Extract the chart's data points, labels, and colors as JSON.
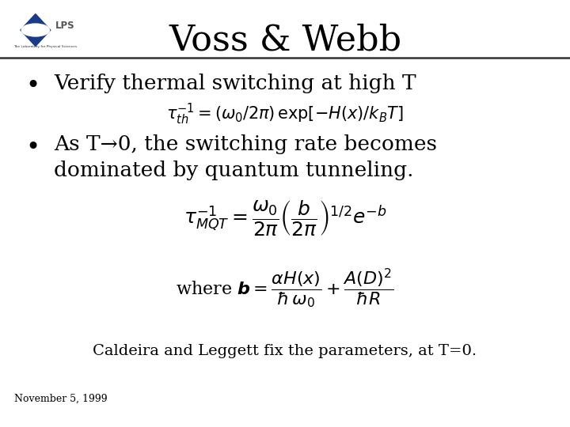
{
  "title": "Voss & Webb",
  "bg_color": "#ffffff",
  "title_fontsize": 32,
  "bullet1": "Verify thermal switching at high T",
  "bullet2_line1": "As T→0, the switching rate becomes",
  "bullet2_line2": "dominated by quantum tunneling.",
  "footer": "Caldeira and Leggett fix the parameters, at T=0.",
  "date": "November 5, 1999",
  "header_line_color": "#333333",
  "text_color": "#000000"
}
